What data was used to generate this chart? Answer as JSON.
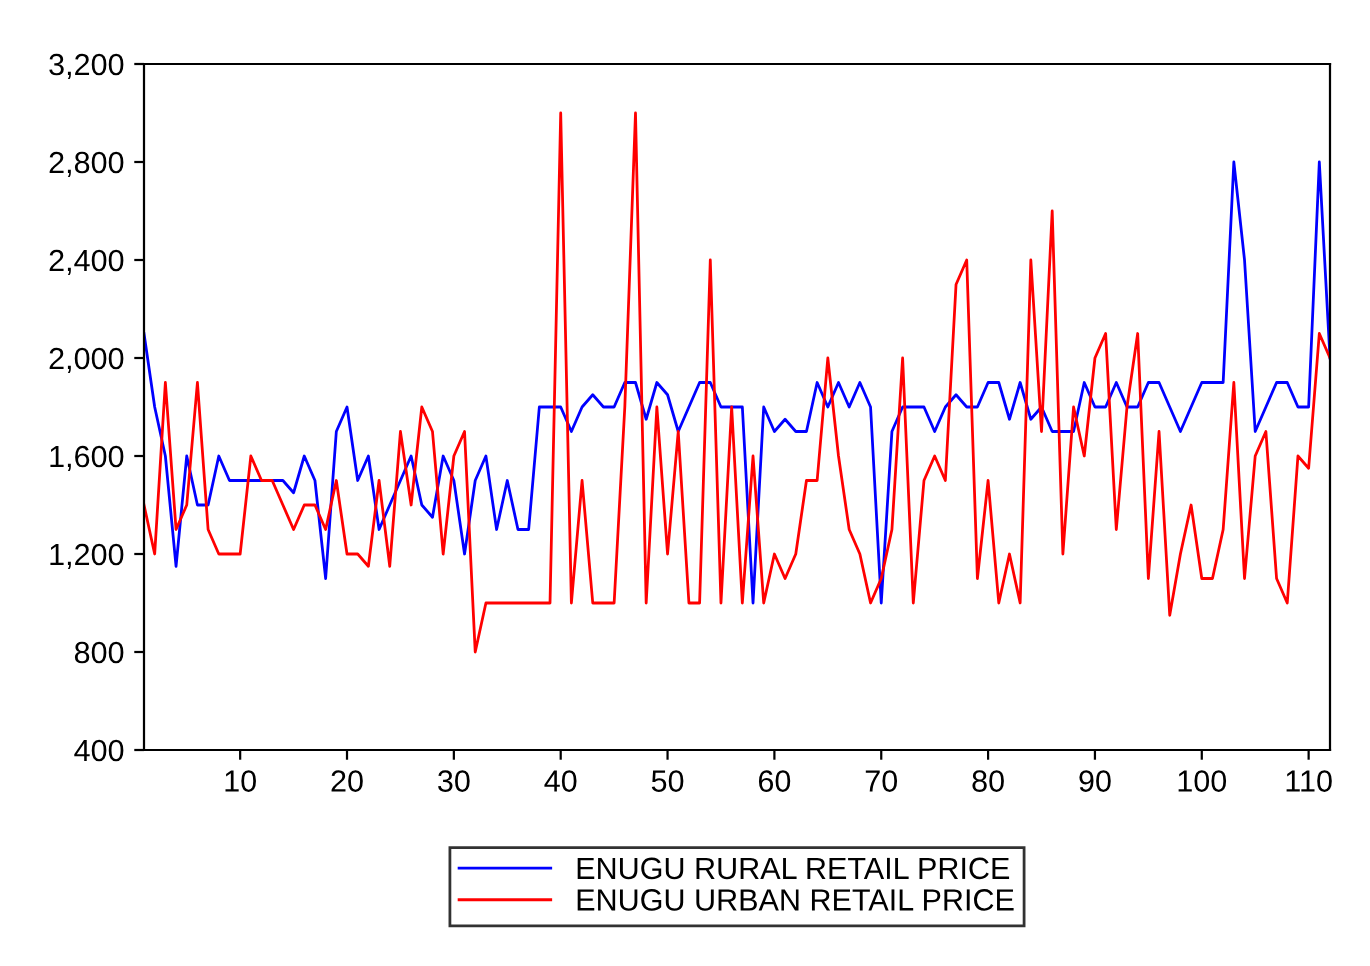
{
  "chart_data": {
    "type": "line",
    "x": [
      1,
      2,
      3,
      4,
      5,
      6,
      7,
      8,
      9,
      10,
      11,
      12,
      13,
      14,
      15,
      16,
      17,
      18,
      19,
      20,
      21,
      22,
      23,
      24,
      25,
      26,
      27,
      28,
      29,
      30,
      31,
      32,
      33,
      34,
      35,
      36,
      37,
      38,
      39,
      40,
      41,
      42,
      43,
      44,
      45,
      46,
      47,
      48,
      49,
      50,
      51,
      52,
      53,
      54,
      55,
      56,
      57,
      58,
      59,
      60,
      61,
      62,
      63,
      64,
      65,
      66,
      67,
      68,
      69,
      70,
      71,
      72,
      73,
      74,
      75,
      76,
      77,
      78,
      79,
      80,
      81,
      82,
      83,
      84,
      85,
      86,
      87,
      88,
      89,
      90,
      91,
      92,
      93,
      94,
      95,
      96,
      97,
      98,
      99,
      100,
      101,
      102,
      103,
      104,
      105,
      106,
      107,
      108,
      109,
      110,
      111,
      112
    ],
    "series": [
      {
        "name": "ENUGU RURAL RETAIL PRICE",
        "color": "#0000ff",
        "values": [
          2100,
          1800,
          1600,
          1150,
          1600,
          1400,
          1400,
          1600,
          1500,
          1500,
          1500,
          1500,
          1500,
          1500,
          1450,
          1600,
          1500,
          1100,
          1700,
          1800,
          1500,
          1600,
          1300,
          1400,
          1500,
          1600,
          1400,
          1350,
          1600,
          1500,
          1200,
          1500,
          1600,
          1300,
          1500,
          1300,
          1300,
          1800,
          1800,
          1800,
          1700,
          1800,
          1850,
          1800,
          1800,
          1900,
          1900,
          1750,
          1900,
          1850,
          1700,
          1800,
          1900,
          1900,
          1800,
          1800,
          1800,
          1000,
          1800,
          1700,
          1750,
          1700,
          1700,
          1900,
          1800,
          1900,
          1800,
          1900,
          1800,
          1000,
          1700,
          1800,
          1800,
          1800,
          1700,
          1800,
          1850,
          1800,
          1800,
          1900,
          1900,
          1750,
          1900,
          1750,
          1800,
          1700,
          1700,
          1700,
          1900,
          1800,
          1800,
          1900,
          1800,
          1800,
          1900,
          1900,
          1800,
          1700,
          1800,
          1900,
          1900,
          1900,
          2800,
          2400,
          1700,
          1800,
          1900,
          1900,
          1800,
          1800,
          2800,
          2000
        ]
      },
      {
        "name": "ENUGU URBAN RETAIL PRICE",
        "color": "#ff0000",
        "values": [
          1400,
          1200,
          1900,
          1300,
          1400,
          1900,
          1300,
          1200,
          1200,
          1200,
          1600,
          1500,
          1500,
          1400,
          1300,
          1400,
          1400,
          1300,
          1500,
          1200,
          1200,
          1150,
          1500,
          1150,
          1700,
          1400,
          1800,
          1700,
          1200,
          1600,
          1700,
          800,
          1000,
          1000,
          1000,
          1000,
          1000,
          1000,
          1000,
          3000,
          1000,
          1500,
          1000,
          1000,
          1000,
          1800,
          3000,
          1000,
          1800,
          1200,
          1700,
          1000,
          1000,
          2400,
          1000,
          1800,
          1000,
          1600,
          1000,
          1200,
          1100,
          1200,
          1500,
          1500,
          2000,
          1600,
          1300,
          1200,
          1000,
          1100,
          1300,
          2000,
          1000,
          1500,
          1600,
          1500,
          2300,
          2400,
          1100,
          1500,
          1000,
          1200,
          1000,
          2400,
          1700,
          2600,
          1200,
          1800,
          1600,
          2000,
          2100,
          1300,
          1800,
          2100,
          1100,
          1700,
          950,
          1200,
          1400,
          1100,
          1100,
          1300,
          1900,
          1100,
          1600,
          1700,
          1100,
          1000,
          1600,
          1550,
          2100,
          2000
        ]
      }
    ],
    "xlim": [
      1,
      112
    ],
    "xticks": [
      10,
      20,
      30,
      40,
      50,
      60,
      70,
      80,
      90,
      100,
      110
    ],
    "ylim": [
      400,
      3200
    ],
    "yticks": [
      {
        "value": 400,
        "label": "400"
      },
      {
        "value": 800,
        "label": "800"
      },
      {
        "value": 1200,
        "label": "1,200"
      },
      {
        "value": 1600,
        "label": "1,600"
      },
      {
        "value": 2000,
        "label": "2,000"
      },
      {
        "value": 2400,
        "label": "2,400"
      },
      {
        "value": 2800,
        "label": "2,800"
      },
      {
        "value": 3200,
        "label": "3,200"
      }
    ],
    "grid": false,
    "legend": "bottom",
    "marker": "none",
    "line_style": "solid"
  }
}
